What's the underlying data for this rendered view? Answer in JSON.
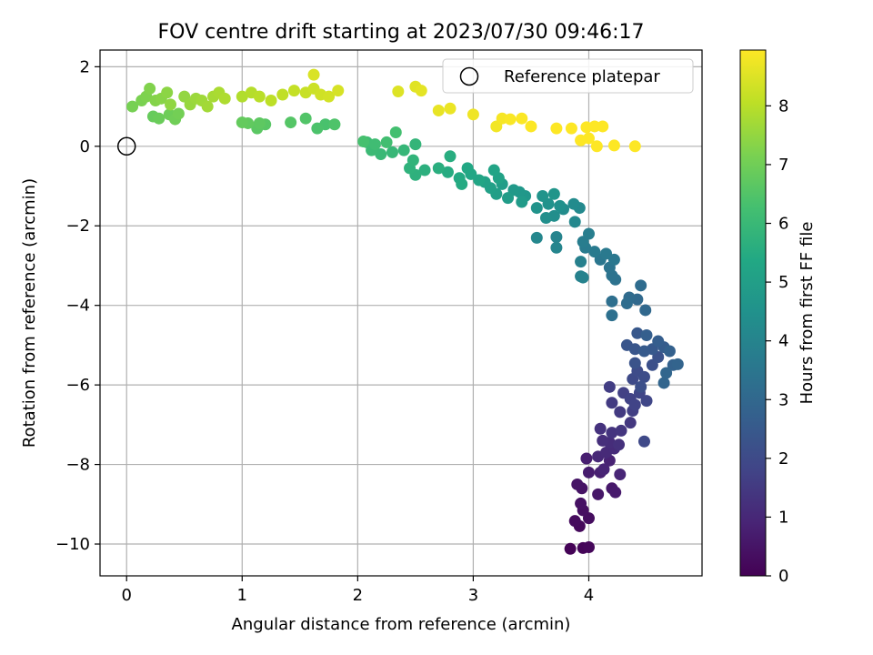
{
  "chart_data": {
    "type": "scatter",
    "title": "FOV centre drift starting at 2023/07/30 09:46:17",
    "xlabel": "Angular distance from reference (arcmin)",
    "ylabel": "Rotation from reference (arcmin)",
    "xlim": [
      -0.23,
      4.98
    ],
    "ylim": [
      -10.8,
      2.42
    ],
    "xticks": [
      0,
      1,
      2,
      3,
      4
    ],
    "xtick_labels": [
      "0",
      "1",
      "2",
      "3",
      "4"
    ],
    "yticks": [
      2,
      0,
      -2,
      -4,
      -6,
      -8,
      -10
    ],
    "ytick_labels": [
      "2",
      "0",
      "−2",
      "−4",
      "−6",
      "−8",
      "−10"
    ],
    "grid": true,
    "colormap": "viridis",
    "colorbar": {
      "label": "Hours from first FF file",
      "range": [
        0,
        8.95
      ],
      "ticks": [
        0,
        1,
        2,
        3,
        4,
        5,
        6,
        7,
        8
      ],
      "tick_labels": [
        "0",
        "1",
        "2",
        "3",
        "4",
        "5",
        "6",
        "7",
        "8"
      ]
    },
    "legend": {
      "position": "upper right",
      "entries": [
        {
          "label": "Reference platepar",
          "marker": "open-circle"
        }
      ]
    },
    "reference_point": {
      "x": 0,
      "y": 0
    },
    "series": [
      {
        "points": [
          [
            3.84,
            -10.12,
            0.05
          ],
          [
            3.95,
            -10.1,
            0.1
          ],
          [
            4.0,
            -10.08,
            0.15
          ],
          [
            3.92,
            -9.55,
            0.2
          ],
          [
            3.88,
            -9.42,
            0.25
          ],
          [
            4.0,
            -9.35,
            0.3
          ],
          [
            3.95,
            -9.15,
            0.35
          ],
          [
            3.93,
            -8.98,
            0.4
          ],
          [
            3.94,
            -8.6,
            0.45
          ],
          [
            3.9,
            -8.5,
            0.5
          ],
          [
            4.08,
            -8.75,
            0.55
          ],
          [
            4.2,
            -8.6,
            0.6
          ],
          [
            4.23,
            -8.7,
            0.65
          ],
          [
            4.0,
            -8.2,
            0.7
          ],
          [
            3.98,
            -7.85,
            0.75
          ],
          [
            4.1,
            -8.2,
            0.8
          ],
          [
            4.18,
            -7.9,
            0.85
          ],
          [
            4.13,
            -8.12,
            0.9
          ],
          [
            4.27,
            -8.25,
            0.95
          ],
          [
            4.08,
            -7.8,
            1.0
          ],
          [
            4.15,
            -7.7,
            1.05
          ],
          [
            4.22,
            -7.6,
            1.1
          ],
          [
            4.18,
            -7.45,
            1.15
          ],
          [
            4.12,
            -7.4,
            1.2
          ],
          [
            4.26,
            -7.5,
            1.25
          ],
          [
            4.1,
            -7.1,
            1.3
          ],
          [
            4.2,
            -7.2,
            1.35
          ],
          [
            4.28,
            -7.15,
            1.4
          ],
          [
            4.36,
            -6.95,
            1.45
          ],
          [
            4.27,
            -6.68,
            1.5
          ],
          [
            4.2,
            -6.45,
            1.55
          ],
          [
            4.18,
            -6.05,
            1.6
          ],
          [
            4.38,
            -6.65,
            1.65
          ],
          [
            4.3,
            -6.2,
            1.7
          ],
          [
            4.36,
            -6.35,
            1.75
          ],
          [
            4.4,
            -6.5,
            1.8
          ],
          [
            4.44,
            -6.2,
            1.85
          ],
          [
            4.5,
            -6.4,
            1.9
          ],
          [
            4.48,
            -7.42,
            1.95
          ],
          [
            4.38,
            -5.85,
            2.0
          ],
          [
            4.42,
            -5.65,
            2.05
          ],
          [
            4.48,
            -5.8,
            2.1
          ],
          [
            4.45,
            -6.05,
            2.15
          ],
          [
            4.55,
            -5.5,
            2.2
          ],
          [
            4.6,
            -5.3,
            2.25
          ],
          [
            4.4,
            -5.45,
            2.3
          ],
          [
            4.33,
            -5.0,
            2.35
          ],
          [
            4.4,
            -5.1,
            2.4
          ],
          [
            4.42,
            -4.7,
            2.45
          ],
          [
            4.55,
            -5.1,
            2.5
          ],
          [
            4.48,
            -5.15,
            2.55
          ],
          [
            4.65,
            -5.05,
            2.6
          ],
          [
            4.6,
            -4.9,
            2.65
          ],
          [
            4.5,
            -4.75,
            2.7
          ],
          [
            4.7,
            -5.15,
            2.75
          ],
          [
            4.73,
            -5.5,
            2.8
          ],
          [
            4.77,
            -5.48,
            2.85
          ],
          [
            4.65,
            -5.95,
            2.9
          ],
          [
            4.67,
            -5.7,
            2.95
          ],
          [
            4.49,
            -4.12,
            3.0
          ],
          [
            4.42,
            -3.85,
            3.05
          ],
          [
            4.35,
            -3.8,
            3.1
          ],
          [
            4.45,
            -3.5,
            3.15
          ],
          [
            4.33,
            -3.95,
            3.2
          ],
          [
            4.2,
            -3.9,
            3.25
          ],
          [
            4.2,
            -4.25,
            3.3
          ],
          [
            4.23,
            -3.35,
            3.35
          ],
          [
            4.2,
            -3.25,
            3.4
          ],
          [
            4.18,
            -3.05,
            3.45
          ],
          [
            4.1,
            -2.85,
            3.5
          ],
          [
            4.22,
            -2.85,
            3.55
          ],
          [
            4.15,
            -2.7,
            3.6
          ],
          [
            4.05,
            -2.65,
            3.65
          ],
          [
            3.97,
            -2.55,
            3.7
          ],
          [
            3.95,
            -2.4,
            3.75
          ],
          [
            4.0,
            -2.2,
            3.8
          ],
          [
            3.93,
            -2.9,
            3.85
          ],
          [
            3.93,
            -3.27,
            3.9
          ],
          [
            3.95,
            -3.3,
            3.95
          ],
          [
            3.72,
            -2.28,
            4.0
          ],
          [
            3.72,
            -2.55,
            4.05
          ],
          [
            3.55,
            -2.3,
            4.1
          ],
          [
            3.88,
            -1.9,
            4.15
          ],
          [
            3.92,
            -1.55,
            4.2
          ],
          [
            3.87,
            -1.45,
            4.25
          ],
          [
            3.78,
            -1.58,
            4.3
          ],
          [
            3.7,
            -1.75,
            4.35
          ],
          [
            3.63,
            -1.8,
            4.4
          ],
          [
            3.75,
            -1.5,
            4.45
          ],
          [
            3.65,
            -1.45,
            4.5
          ],
          [
            3.55,
            -1.55,
            4.55
          ],
          [
            3.6,
            -1.25,
            4.6
          ],
          [
            3.7,
            -1.2,
            4.65
          ],
          [
            3.45,
            -1.25,
            4.7
          ],
          [
            3.4,
            -1.15,
            4.75
          ],
          [
            3.35,
            -1.1,
            4.8
          ],
          [
            3.42,
            -1.4,
            4.85
          ],
          [
            3.3,
            -1.3,
            4.9
          ],
          [
            3.25,
            -0.95,
            4.95
          ],
          [
            3.2,
            -1.2,
            5.0
          ],
          [
            3.15,
            -1.05,
            5.05
          ],
          [
            3.1,
            -0.9,
            5.1
          ],
          [
            3.22,
            -0.8,
            5.15
          ],
          [
            3.18,
            -0.6,
            5.2
          ],
          [
            3.05,
            -0.85,
            5.25
          ],
          [
            2.98,
            -0.7,
            5.3
          ],
          [
            2.95,
            -0.55,
            5.35
          ],
          [
            2.88,
            -0.8,
            5.4
          ],
          [
            2.9,
            -0.95,
            5.45
          ],
          [
            2.78,
            -0.65,
            5.5
          ],
          [
            2.8,
            -0.25,
            5.55
          ],
          [
            2.7,
            -0.55,
            5.6
          ],
          [
            2.58,
            -0.6,
            5.65
          ],
          [
            2.5,
            -0.72,
            5.7
          ],
          [
            2.45,
            -0.55,
            5.75
          ],
          [
            2.48,
            -0.35,
            5.8
          ],
          [
            2.5,
            0.05,
            5.85
          ],
          [
            2.4,
            -0.1,
            5.9
          ],
          [
            2.3,
            -0.15,
            5.95
          ],
          [
            2.2,
            -0.2,
            6.0
          ],
          [
            2.12,
            -0.1,
            6.05
          ],
          [
            2.08,
            0.1,
            6.1
          ],
          [
            2.15,
            0.05,
            6.15
          ],
          [
            2.25,
            0.1,
            6.2
          ],
          [
            2.33,
            0.35,
            6.25
          ],
          [
            2.05,
            0.12,
            6.3
          ],
          [
            1.72,
            0.55,
            6.35
          ],
          [
            1.65,
            0.45,
            6.4
          ],
          [
            1.8,
            0.55,
            6.45
          ],
          [
            1.55,
            0.7,
            6.5
          ],
          [
            1.42,
            0.6,
            6.55
          ],
          [
            1.2,
            0.55,
            6.6
          ],
          [
            1.13,
            0.45,
            6.65
          ],
          [
            1.15,
            0.58,
            6.7
          ],
          [
            1.05,
            0.58,
            6.75
          ],
          [
            1.0,
            0.6,
            6.8
          ],
          [
            0.23,
            0.75,
            6.85
          ],
          [
            0.28,
            0.7,
            6.9
          ],
          [
            0.37,
            0.8,
            6.95
          ],
          [
            0.42,
            0.68,
            7.0
          ],
          [
            0.45,
            0.82,
            7.05
          ],
          [
            0.05,
            1.0,
            7.1
          ],
          [
            0.13,
            1.15,
            7.15
          ],
          [
            0.17,
            1.25,
            7.2
          ],
          [
            0.2,
            1.45,
            7.25
          ],
          [
            0.25,
            1.15,
            7.3
          ],
          [
            0.3,
            1.2,
            7.35
          ],
          [
            0.35,
            1.35,
            7.4
          ],
          [
            0.38,
            1.05,
            7.45
          ],
          [
            0.5,
            1.25,
            7.5
          ],
          [
            0.55,
            1.05,
            7.55
          ],
          [
            0.6,
            1.2,
            7.6
          ],
          [
            0.65,
            1.15,
            7.65
          ],
          [
            0.7,
            1.0,
            7.7
          ],
          [
            0.75,
            1.25,
            7.75
          ],
          [
            0.8,
            1.35,
            7.8
          ],
          [
            0.85,
            1.2,
            7.85
          ],
          [
            1.0,
            1.25,
            7.9
          ],
          [
            1.08,
            1.35,
            7.95
          ],
          [
            1.15,
            1.25,
            8.0
          ],
          [
            1.25,
            1.15,
            8.05
          ],
          [
            1.35,
            1.3,
            8.1
          ],
          [
            1.45,
            1.4,
            8.15
          ],
          [
            1.55,
            1.35,
            8.2
          ],
          [
            1.62,
            1.45,
            8.25
          ],
          [
            1.68,
            1.3,
            8.3
          ],
          [
            1.75,
            1.25,
            8.35
          ],
          [
            1.83,
            1.4,
            8.4
          ],
          [
            1.62,
            1.8,
            8.45
          ],
          [
            2.35,
            1.38,
            8.5
          ],
          [
            2.5,
            1.5,
            8.55
          ],
          [
            2.55,
            1.4,
            8.6
          ],
          [
            2.7,
            0.9,
            8.65
          ],
          [
            2.8,
            0.95,
            8.7
          ],
          [
            3.0,
            0.8,
            8.75
          ],
          [
            3.2,
            0.5,
            8.8
          ],
          [
            3.25,
            0.7,
            8.85
          ],
          [
            3.32,
            0.68,
            8.9
          ],
          [
            3.42,
            0.7,
            8.92
          ],
          [
            3.5,
            0.5,
            8.94
          ],
          [
            3.72,
            0.45,
            8.95
          ],
          [
            3.85,
            0.45,
            8.95
          ],
          [
            3.98,
            0.48,
            8.95
          ],
          [
            4.0,
            0.2,
            8.95
          ],
          [
            3.93,
            0.15,
            8.95
          ],
          [
            4.05,
            0.5,
            8.95
          ],
          [
            4.12,
            0.5,
            8.95
          ],
          [
            4.07,
            0.0,
            8.95
          ],
          [
            4.22,
            0.02,
            8.95
          ],
          [
            4.4,
            0.0,
            8.95
          ]
        ]
      }
    ]
  }
}
